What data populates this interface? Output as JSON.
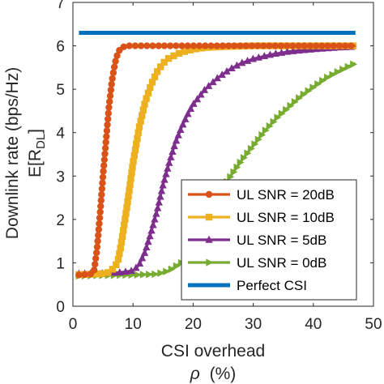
{
  "chart_data": {
    "type": "line",
    "xlabel_line1": "CSI overhead",
    "xlabel_line2_symbol": "ρ",
    "xlabel_line2_unit": "(%)",
    "ylabel_line1": "Downlink rate (bps/Hz)",
    "ylabel_line2_prefix": "E[R",
    "ylabel_line2_sub": "DL",
    "ylabel_line2_suffix": "]",
    "xlim": [
      0,
      50
    ],
    "ylim": [
      0,
      7
    ],
    "xticks": [
      0,
      10,
      20,
      30,
      40,
      50
    ],
    "yticks": [
      0,
      1,
      2,
      3,
      4,
      5,
      6,
      7
    ],
    "xtick_labels": [
      "0",
      "10",
      "20",
      "30",
      "40",
      "50"
    ],
    "ytick_labels": [
      "0",
      "1",
      "2",
      "3",
      "4",
      "5",
      "6",
      "7"
    ],
    "grid": false,
    "legend_position": "lower-right",
    "series": [
      {
        "name": "UL SNR = 20dB",
        "color": "#D95319",
        "marker": "circle",
        "x": [
          1,
          2,
          3,
          3.5,
          4,
          4.5,
          5,
          5.5,
          6,
          6.5,
          7,
          7.5,
          8,
          8.5,
          9,
          10,
          11,
          12,
          15,
          20,
          25,
          30,
          35,
          40,
          45,
          47
        ],
        "y": [
          0.72,
          0.73,
          0.74,
          0.8,
          1.3,
          2.1,
          3.0,
          3.8,
          4.6,
          5.2,
          5.6,
          5.85,
          5.95,
          5.98,
          6.0,
          6.0,
          6.0,
          6.0,
          6.0,
          6.0,
          6.0,
          6.0,
          6.0,
          6.0,
          6.0,
          6.0
        ]
      },
      {
        "name": "UL SNR = 10dB",
        "color": "#EDB120",
        "marker": "square",
        "x": [
          1,
          3,
          5,
          6,
          7,
          7.5,
          8,
          9,
          10,
          11,
          12,
          13,
          14,
          15,
          16,
          18,
          20,
          22,
          25,
          30,
          35,
          40,
          45,
          47
        ],
        "y": [
          0.73,
          0.74,
          0.75,
          0.78,
          0.9,
          1.05,
          1.4,
          2.3,
          3.3,
          4.1,
          4.7,
          5.1,
          5.4,
          5.6,
          5.72,
          5.85,
          5.92,
          5.96,
          5.98,
          6.0,
          6.0,
          6.0,
          6.0,
          6.0
        ]
      },
      {
        "name": "UL SNR = 5dB",
        "color": "#7E2F8E",
        "marker": "triangle",
        "x": [
          1,
          5,
          8,
          10,
          11,
          12,
          13,
          14,
          15,
          16,
          17,
          18,
          19,
          20,
          22,
          24,
          26,
          28,
          30,
          33,
          36,
          40,
          44,
          47
        ],
        "y": [
          0.75,
          0.76,
          0.78,
          0.82,
          0.95,
          1.25,
          1.7,
          2.2,
          2.8,
          3.3,
          3.75,
          4.1,
          4.4,
          4.65,
          5.0,
          5.25,
          5.45,
          5.6,
          5.7,
          5.8,
          5.87,
          5.92,
          5.96,
          5.98
        ]
      },
      {
        "name": "UL SNR = 0dB",
        "color": "#77AC30",
        "marker": "triangle-right",
        "x": [
          1,
          5,
          10,
          14,
          16,
          18,
          20,
          22,
          24,
          26,
          28,
          30,
          32,
          34,
          36,
          38,
          40,
          42,
          44,
          47
        ],
        "y": [
          0.7,
          0.71,
          0.72,
          0.74,
          0.82,
          1.0,
          1.4,
          2.0,
          2.5,
          2.95,
          3.35,
          3.7,
          4.05,
          4.35,
          4.6,
          4.85,
          5.05,
          5.25,
          5.4,
          5.6
        ]
      },
      {
        "name": "Perfect CSI",
        "color": "#0072BD",
        "marker": "none",
        "x": [
          1,
          47
        ],
        "y": [
          6.3,
          6.3
        ]
      }
    ]
  }
}
